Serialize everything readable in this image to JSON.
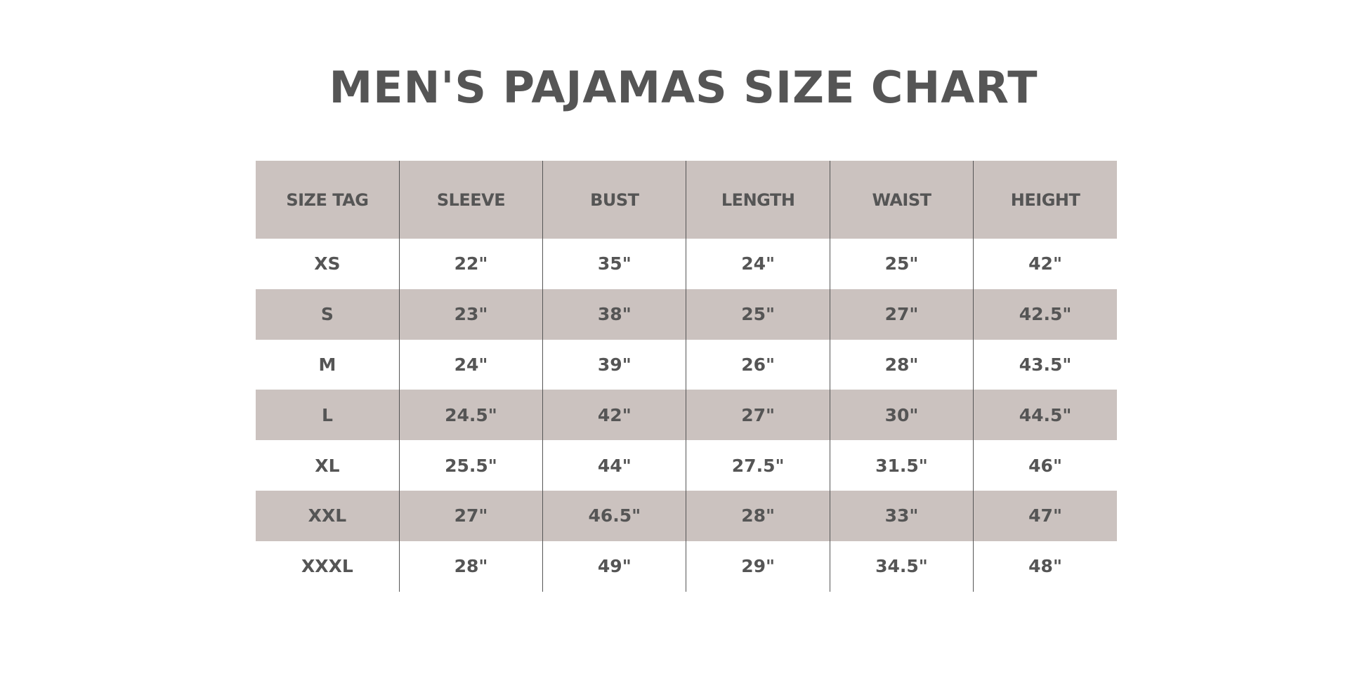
{
  "title": "MEN'S PAJAMAS SIZE CHART",
  "colors": {
    "header_bg": "#cbc2bf",
    "text": "#555555",
    "row_alt_bg": "#cbc2bf"
  },
  "headers": [
    "SIZE TAG",
    "SLEEVE",
    "BUST",
    "LENGTH",
    "WAIST",
    "HEIGHT"
  ],
  "rows": [
    [
      "XS",
      "22\"",
      "35\"",
      "24\"",
      "25\"",
      "42\""
    ],
    [
      "S",
      "23\"",
      "38\"",
      "25\"",
      "27\"",
      "42.5\""
    ],
    [
      "M",
      "24\"",
      "39\"",
      "26\"",
      "28\"",
      "43.5\""
    ],
    [
      "L",
      "24.5\"",
      "42\"",
      "27\"",
      "30\"",
      "44.5\""
    ],
    [
      "XL",
      "25.5\"",
      "44\"",
      "27.5\"",
      "31.5\"",
      "46\""
    ],
    [
      "XXL",
      "27\"",
      "46.5\"",
      "28\"",
      "33\"",
      "47\""
    ],
    [
      "XXXL",
      "28\"",
      "49\"",
      "29\"",
      "34.5\"",
      "48\""
    ]
  ]
}
